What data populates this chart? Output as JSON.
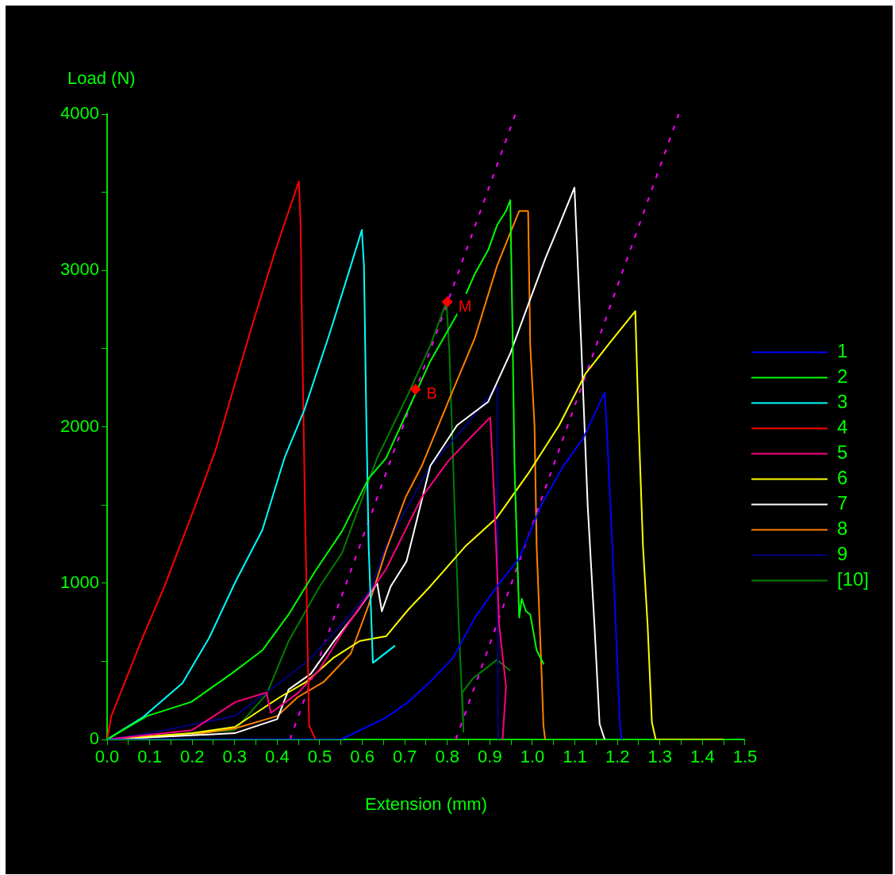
{
  "chart_data": {
    "type": "line",
    "xlabel": "Extension (mm)",
    "ylabel": "Load (N)",
    "xlim": [
      0,
      1.5
    ],
    "ylim": [
      0,
      4000
    ],
    "xticks": [
      {
        "value": 0,
        "label": "0.0"
      },
      {
        "value": 0.05,
        "label": null
      },
      {
        "value": 0.1,
        "label": "0.1"
      },
      {
        "value": 0.15,
        "label": null
      },
      {
        "value": 0.2,
        "label": "0.2"
      },
      {
        "value": 0.25,
        "label": null
      },
      {
        "value": 0.3,
        "label": "0.3"
      },
      {
        "value": 0.35,
        "label": null
      },
      {
        "value": 0.4,
        "label": "0.4"
      },
      {
        "value": 0.45,
        "label": null
      },
      {
        "value": 0.5,
        "label": "0.5"
      },
      {
        "value": 0.55,
        "label": null
      },
      {
        "value": 0.6,
        "label": "0.6"
      },
      {
        "value": 0.65,
        "label": null
      },
      {
        "value": 0.7,
        "label": "0.7"
      },
      {
        "value": 0.75,
        "label": null
      },
      {
        "value": 0.8,
        "label": "0.8"
      },
      {
        "value": 0.85,
        "label": null
      },
      {
        "value": 0.9,
        "label": "0.9"
      },
      {
        "value": 0.95,
        "label": null
      },
      {
        "value": 1,
        "label": "1.0"
      },
      {
        "value": 1.05,
        "label": null
      },
      {
        "value": 1.1,
        "label": "1.1"
      },
      {
        "value": 1.15,
        "label": null
      },
      {
        "value": 1.2,
        "label": "1.2"
      },
      {
        "value": 1.25,
        "label": null
      },
      {
        "value": 1.3,
        "label": "1.3"
      },
      {
        "value": 1.35,
        "label": null
      },
      {
        "value": 1.4,
        "label": "1.4"
      },
      {
        "value": 1.45,
        "label": null
      },
      {
        "value": 1.5,
        "label": "1.5"
      }
    ],
    "yticks": [
      0,
      {
        "value": 500,
        "label": null
      },
      1000,
      {
        "value": 1500,
        "label": null
      },
      2000,
      {
        "value": 2500,
        "label": null
      },
      3000,
      {
        "value": 3500,
        "label": null
      },
      4000
    ],
    "legend": "right",
    "marker": "none",
    "line_style": "solid",
    "series": [
      {
        "name": "1",
        "color": "#0000ff",
        "x": [
          0,
          0.55,
          0.656,
          0.708,
          0.76,
          0.813,
          0.865,
          0.917,
          0.969,
          1.021,
          1.073,
          1.12,
          1.151,
          1.17,
          1.177,
          1.188,
          1.198,
          1.206,
          1.21
        ],
        "values": [
          0,
          0,
          140,
          240,
          370,
          520,
          780,
          980,
          1160,
          1500,
          1750,
          1930,
          2110,
          2220,
          1880,
          1240,
          600,
          90,
          0
        ]
      },
      {
        "name": "2",
        "color": "#00ff00",
        "x": [
          0,
          0.094,
          0.198,
          0.292,
          0.365,
          0.427,
          0.49,
          0.552,
          0.615,
          0.656,
          0.76,
          0.823,
          0.865,
          0.896,
          0.917,
          0.938,
          0.948,
          0.953,
          0.958,
          0.969,
          0.975,
          0.985,
          0.995,
          1.01,
          1.027
        ],
        "values": [
          0,
          150,
          240,
          420,
          570,
          800,
          1080,
          1330,
          1670,
          1800,
          2420,
          2720,
          2980,
          3130,
          3290,
          3380,
          3450,
          2670,
          1750,
          780,
          900,
          820,
          800,
          570,
          480
        ]
      },
      {
        "name": "3",
        "color": "#00ffff",
        "x": [
          0,
          0.083,
          0.177,
          0.24,
          0.302,
          0.365,
          0.417,
          0.464,
          0.526,
          0.573,
          0.599,
          0.604,
          0.609,
          0.615,
          0.625,
          0.677
        ],
        "values": [
          0,
          140,
          360,
          650,
          1010,
          1340,
          1800,
          2110,
          2620,
          3030,
          3260,
          3030,
          2140,
          1240,
          490,
          600
        ]
      },
      {
        "name": "4",
        "color": "#ff0000",
        "x": [
          0,
          0.01,
          0.083,
          0.135,
          0.208,
          0.255,
          0.302,
          0.349,
          0.396,
          0.427,
          0.451,
          0.455,
          0.458,
          0.465,
          0.475,
          0.49
        ],
        "values": [
          0,
          150,
          650,
          980,
          1500,
          1850,
          2290,
          2720,
          3130,
          3380,
          3570,
          3290,
          2700,
          1520,
          90,
          0
        ]
      },
      {
        "name": "5",
        "color": "#ff0080",
        "x": [
          0,
          0.2,
          0.302,
          0.375,
          0.385,
          0.45,
          0.5,
          0.552,
          0.656,
          0.74,
          0.802,
          0.854,
          0.901,
          0.911,
          0.922,
          0.938,
          0.93
        ],
        "values": [
          0,
          60,
          240,
          300,
          170,
          300,
          450,
          680,
          1090,
          1550,
          1780,
          1930,
          2060,
          1500,
          730,
          340,
          0
        ]
      },
      {
        "name": "6",
        "color": "#ffff00",
        "x": [
          0,
          0.2,
          0.3,
          0.406,
          0.469,
          0.531,
          0.594,
          0.656,
          0.708,
          0.76,
          0.844,
          0.917,
          0.99,
          1.063,
          1.125,
          1.177,
          1.242,
          1.25,
          1.26,
          1.271,
          1.281,
          1.29,
          1.45
        ],
        "values": [
          0,
          40,
          80,
          270,
          370,
          520,
          630,
          660,
          830,
          980,
          1240,
          1420,
          1700,
          2010,
          2340,
          2520,
          2740,
          2010,
          1240,
          730,
          110,
          0,
          0
        ]
      },
      {
        "name": "7",
        "color": "#ffffff",
        "x": [
          0,
          0.3,
          0.4,
          0.427,
          0.479,
          0.531,
          0.583,
          0.635,
          0.646,
          0.667,
          0.704,
          0.76,
          0.823,
          0.896,
          0.948,
          0.99,
          1.031,
          1.063,
          1.099,
          1.115,
          1.13,
          1.146,
          1.158,
          1.17
        ],
        "values": [
          0,
          40,
          130,
          320,
          420,
          620,
          800,
          1000,
          820,
          980,
          1140,
          1750,
          2010,
          2160,
          2470,
          2780,
          3080,
          3290,
          3530,
          2520,
          1500,
          730,
          100,
          0
        ]
      },
      {
        "name": "8",
        "color": "#ff8000",
        "x": [
          0,
          0.2,
          0.3,
          0.4,
          0.448,
          0.51,
          0.573,
          0.615,
          0.656,
          0.702,
          0.74,
          0.802,
          0.865,
          0.917,
          0.948,
          0.969,
          0.99,
          0.995,
          1.005,
          1.01,
          1.021,
          1.026,
          1.03
        ],
        "values": [
          0,
          30,
          70,
          150,
          270,
          370,
          550,
          860,
          1210,
          1550,
          1750,
          2160,
          2570,
          3030,
          3240,
          3380,
          3380,
          2520,
          2010,
          1240,
          470,
          90,
          0
        ]
      },
      {
        "name": "9",
        "color": "#000080",
        "x": [
          0,
          0.1,
          0.3,
          0.4,
          0.479,
          0.573,
          0.62,
          0.656,
          0.76,
          0.844,
          0.917,
          0.919,
          0.92
        ],
        "values": [
          0,
          40,
          150,
          350,
          520,
          800,
          960,
          1240,
          1750,
          2010,
          2260,
          90,
          0
        ]
      },
      {
        "name": "[10]",
        "color": "#008000",
        "x": [
          0,
          0.3,
          0.375,
          0.427,
          0.5,
          0.552,
          0.594,
          0.635,
          0.708,
          0.76,
          0.798,
          0.805,
          0.817,
          0.827,
          0.838,
          0.835,
          0.86,
          0.917,
          0.948
        ],
        "values": [
          0,
          60,
          290,
          630,
          980,
          1190,
          1500,
          1800,
          2210,
          2520,
          2800,
          2470,
          1500,
          730,
          50,
          300,
          390,
          510,
          440
        ]
      },
      {
        "color": "#ff00ff",
        "line_style": "dashed",
        "x": [
          0.43,
          0.96
        ],
        "values": [
          0,
          4000
        ]
      },
      {
        "color": "#ff00ff",
        "line_style": "dashed",
        "x": [
          0.82,
          1.344
        ],
        "values": [
          0,
          4000
        ]
      }
    ],
    "annotations": [
      {
        "text": "M",
        "x": 0.8,
        "y": 2800
      },
      {
        "text": "B",
        "x": 0.725,
        "y": 2240
      }
    ]
  }
}
